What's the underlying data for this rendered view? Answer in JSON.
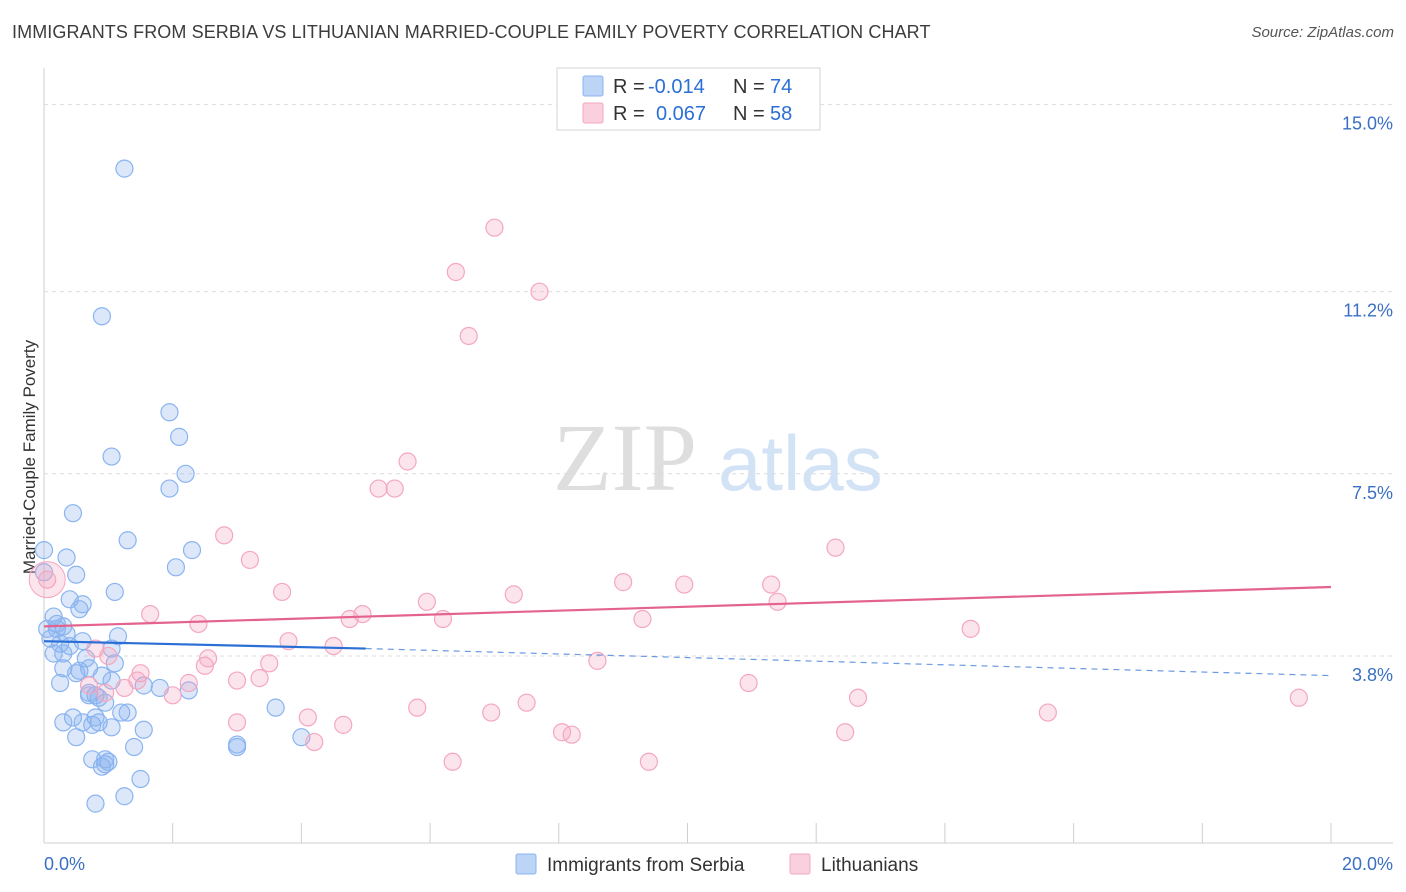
{
  "header": {
    "title": "IMMIGRANTS FROM SERBIA VS LITHUANIAN MARRIED-COUPLE FAMILY POVERTY CORRELATION CHART",
    "source": "Source: ZipAtlas.com"
  },
  "watermark": {
    "zip": "ZIP",
    "atlas": "atlas"
  },
  "chart_data": {
    "type": "scatter",
    "title": "IMMIGRANTS FROM SERBIA VS LITHUANIAN MARRIED-COUPLE FAMILY POVERTY CORRELATION CHART",
    "xlabel": "",
    "ylabel": "Married-Couple Family Poverty",
    "xlim": [
      0,
      20
    ],
    "ylim": [
      0,
      15.5
    ],
    "x_tick_labels": [
      "0.0%",
      "20.0%"
    ],
    "y_ticks": [
      3.8,
      7.5,
      11.2,
      15.0
    ],
    "y_tick_labels": [
      "3.8%",
      "7.5%",
      "11.2%",
      "15.0%"
    ],
    "grid": true,
    "legend_position": "top-center",
    "legend": [
      {
        "r_label": "R =",
        "r_value": "-0.014",
        "n_label": "N =",
        "n_value": "74"
      },
      {
        "r_label": "R =",
        "r_value": "0.067",
        "n_label": "N =",
        "n_value": "58"
      }
    ],
    "series": [
      {
        "name": "Immigrants from Serbia",
        "color": "#8ab4f0",
        "trend": {
          "x": [
            0,
            5.0,
            20.0
          ],
          "y": [
            4.1,
            3.95,
            3.4
          ],
          "solid_until": 5.0,
          "color": "#2b6fd6"
        },
        "points": [
          [
            1.25,
            13.7
          ],
          [
            0.9,
            10.7
          ],
          [
            1.95,
            8.75
          ],
          [
            2.1,
            8.25
          ],
          [
            1.05,
            7.85
          ],
          [
            2.2,
            7.5
          ],
          [
            1.95,
            7.2
          ],
          [
            0.45,
            6.7
          ],
          [
            1.3,
            6.15
          ],
          [
            2.3,
            5.95
          ],
          [
            0.0,
            5.95
          ],
          [
            0.35,
            5.8
          ],
          [
            2.05,
            5.6
          ],
          [
            0.5,
            5.45
          ],
          [
            0.0,
            5.5
          ],
          [
            1.1,
            5.1
          ],
          [
            0.4,
            4.95
          ],
          [
            0.55,
            4.75
          ],
          [
            0.15,
            4.6
          ],
          [
            0.3,
            4.4
          ],
          [
            0.2,
            4.35
          ],
          [
            0.05,
            4.35
          ],
          [
            0.35,
            4.25
          ],
          [
            1.15,
            4.2
          ],
          [
            0.1,
            4.15
          ],
          [
            0.6,
            4.1
          ],
          [
            0.25,
            4.05
          ],
          [
            0.4,
            4.0
          ],
          [
            1.05,
            3.95
          ],
          [
            0.15,
            3.85
          ],
          [
            0.3,
            3.85
          ],
          [
            0.65,
            3.75
          ],
          [
            1.1,
            3.65
          ],
          [
            0.3,
            3.55
          ],
          [
            0.55,
            3.5
          ],
          [
            0.7,
            3.55
          ],
          [
            0.9,
            3.4
          ],
          [
            0.5,
            3.45
          ],
          [
            0.25,
            3.25
          ],
          [
            1.55,
            3.2
          ],
          [
            1.8,
            3.15
          ],
          [
            2.25,
            3.1
          ],
          [
            0.8,
            3.0
          ],
          [
            0.7,
            3.05
          ],
          [
            0.85,
            2.95
          ],
          [
            0.95,
            2.85
          ],
          [
            3.6,
            2.75
          ],
          [
            1.2,
            2.65
          ],
          [
            1.3,
            2.65
          ],
          [
            0.45,
            2.55
          ],
          [
            0.8,
            2.55
          ],
          [
            0.6,
            2.45
          ],
          [
            0.85,
            2.45
          ],
          [
            0.3,
            2.45
          ],
          [
            0.75,
            2.4
          ],
          [
            1.05,
            2.35
          ],
          [
            1.55,
            2.3
          ],
          [
            0.5,
            2.15
          ],
          [
            4.0,
            2.15
          ],
          [
            3.0,
            2.0
          ],
          [
            3.0,
            1.95
          ],
          [
            1.4,
            1.95
          ],
          [
            0.75,
            1.7
          ],
          [
            0.95,
            1.7
          ],
          [
            1.0,
            1.65
          ],
          [
            0.95,
            1.6
          ],
          [
            0.9,
            1.55
          ],
          [
            1.5,
            1.3
          ],
          [
            1.25,
            0.95
          ],
          [
            0.8,
            0.8
          ],
          [
            0.7,
            3.0
          ],
          [
            1.05,
            3.3
          ],
          [
            0.2,
            4.45
          ],
          [
            0.6,
            4.85
          ]
        ]
      },
      {
        "name": "Lithuanians",
        "color": "#f4a7c0",
        "trend": {
          "x": [
            0,
            20.0
          ],
          "y": [
            4.4,
            5.2
          ],
          "color": "#e3628e"
        },
        "points": [
          [
            7.0,
            12.5
          ],
          [
            6.4,
            11.6
          ],
          [
            7.7,
            11.2
          ],
          [
            6.6,
            10.3
          ],
          [
            5.65,
            7.75
          ],
          [
            5.2,
            7.2
          ],
          [
            5.45,
            7.2
          ],
          [
            2.8,
            6.25
          ],
          [
            12.3,
            6.0
          ],
          [
            3.2,
            5.75
          ],
          [
            0.05,
            5.35
          ],
          [
            9.0,
            5.3
          ],
          [
            9.95,
            5.25
          ],
          [
            11.3,
            5.25
          ],
          [
            3.7,
            5.1
          ],
          [
            7.3,
            5.05
          ],
          [
            5.95,
            4.9
          ],
          [
            11.4,
            4.9
          ],
          [
            1.65,
            4.65
          ],
          [
            4.95,
            4.65
          ],
          [
            4.75,
            4.55
          ],
          [
            6.2,
            4.55
          ],
          [
            9.3,
            4.55
          ],
          [
            2.4,
            4.45
          ],
          [
            14.4,
            4.35
          ],
          [
            3.8,
            4.1
          ],
          [
            4.5,
            4.0
          ],
          [
            0.8,
            3.95
          ],
          [
            2.55,
            3.75
          ],
          [
            8.6,
            3.7
          ],
          [
            3.5,
            3.65
          ],
          [
            1.5,
            3.45
          ],
          [
            3.35,
            3.35
          ],
          [
            1.45,
            3.3
          ],
          [
            2.25,
            3.25
          ],
          [
            10.95,
            3.25
          ],
          [
            0.7,
            3.2
          ],
          [
            1.25,
            3.15
          ],
          [
            0.95,
            3.05
          ],
          [
            2.0,
            3.0
          ],
          [
            12.65,
            2.95
          ],
          [
            19.5,
            2.95
          ],
          [
            7.5,
            2.85
          ],
          [
            5.8,
            2.75
          ],
          [
            6.95,
            2.65
          ],
          [
            15.6,
            2.65
          ],
          [
            4.1,
            2.55
          ],
          [
            3.0,
            2.45
          ],
          [
            4.65,
            2.4
          ],
          [
            12.45,
            2.25
          ],
          [
            8.05,
            2.25
          ],
          [
            8.2,
            2.2
          ],
          [
            4.2,
            2.05
          ],
          [
            6.35,
            1.65
          ],
          [
            9.4,
            1.65
          ],
          [
            2.5,
            3.6
          ],
          [
            1.0,
            3.8
          ],
          [
            3.0,
            3.3
          ]
        ]
      }
    ]
  },
  "bottom_legend": {
    "series1_label": "Immigrants from Serbia",
    "series2_label": "Lithuanians"
  }
}
